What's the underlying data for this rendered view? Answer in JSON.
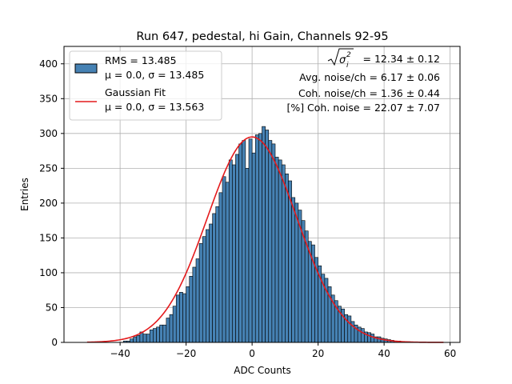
{
  "chart_data": {
    "type": "bar",
    "title": "Run 647, pedestal, hi Gain, Channels 92-95",
    "xlabel": "ADC Counts",
    "ylabel": "Entries",
    "xlim": [
      -57,
      63
    ],
    "ylim": [
      0,
      425
    ],
    "xticks": [
      -40,
      -20,
      0,
      20,
      40,
      60
    ],
    "yticks": [
      0,
      50,
      100,
      150,
      200,
      250,
      300,
      350,
      400
    ],
    "grid": true,
    "legend_placement": "top-left",
    "legend": {
      "hist_label_line1": "RMS = 13.485",
      "hist_label_line2": "μ = 0.0, σ = 13.485",
      "fit_label_line1": "Gaussian Fit",
      "fit_label_line2": "μ = 0.0, σ = 13.563"
    },
    "annotations": {
      "line1_value": " = 12.34 ± 0.12",
      "line2": "Avg. noise/ch = 6.17 ± 0.06",
      "line3": "Coh. noise/ch = 1.36 ± 0.44",
      "line4": "[%] Coh. noise = 22.07 ± 7.07"
    },
    "histogram": {
      "name": "RMS = 13.485",
      "bin_width": 1,
      "bin_start": -50,
      "counts": [
        0,
        0,
        0,
        0,
        0,
        0,
        0,
        0,
        0,
        0,
        0,
        2,
        2,
        5,
        8,
        10,
        15,
        12,
        12,
        18,
        20,
        22,
        25,
        25,
        35,
        40,
        52,
        68,
        72,
        70,
        80,
        95,
        108,
        120,
        142,
        152,
        162,
        170,
        185,
        195,
        215,
        238,
        230,
        262,
        255,
        270,
        285,
        290,
        250,
        292,
        272,
        298,
        300,
        310,
        305,
        290,
        285,
        266,
        262,
        255,
        242,
        232,
        208,
        200,
        190,
        175,
        160,
        145,
        140,
        122,
        110,
        98,
        92,
        80,
        68,
        60,
        52,
        48,
        40,
        38,
        30,
        25,
        22,
        20,
        15,
        14,
        12,
        8,
        8,
        6,
        5,
        4,
        3,
        2,
        2,
        1,
        1,
        1
      ]
    },
    "fit": {
      "name": "Gaussian Fit",
      "mu": 0.0,
      "sigma": 13.563,
      "amplitude": 295,
      "x_range": [
        -50,
        58
      ]
    },
    "colors": {
      "bar_fill": "#4682b4",
      "bar_edge": "#000000",
      "fit_line": "#e41a1c",
      "grid": "#b0b0b0"
    }
  }
}
